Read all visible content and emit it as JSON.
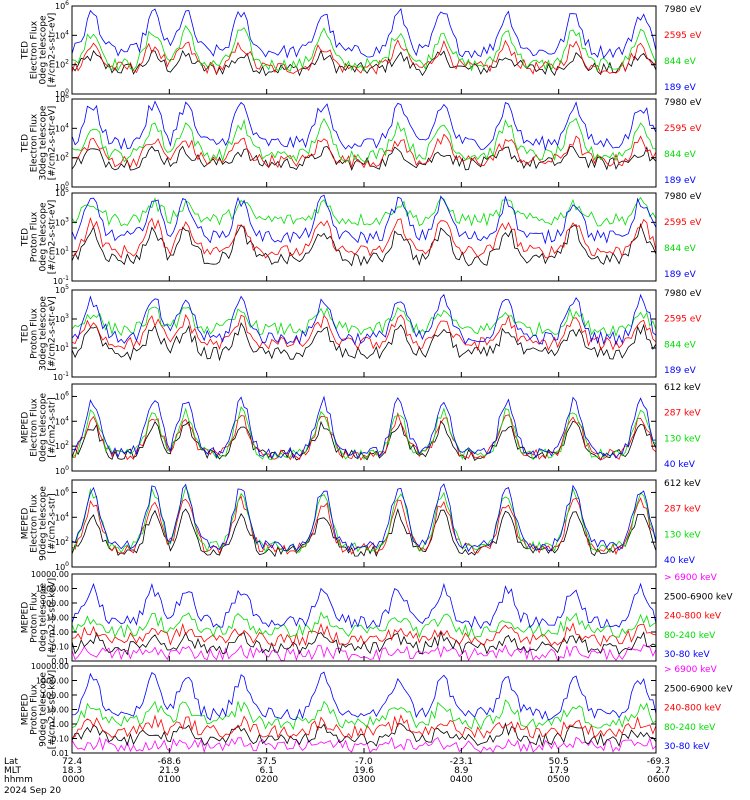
{
  "colors": {
    "black": "#000000",
    "red": "#ff0000",
    "green": "#00dd00",
    "blue": "#0000ff",
    "magenta": "#ff00ff"
  },
  "chart_data": [
    {
      "type": "line",
      "scale": "log",
      "ylim": [
        1,
        1000000
      ],
      "ylabel": [
        "TED",
        "Electron Flux",
        "0deg telescope",
        "[#/cm2-s-str-eV]"
      ],
      "yticks": [
        {
          "label": "10",
          "exp": "0",
          "v": 1
        },
        {
          "label": "10",
          "exp": "2",
          "v": 100
        },
        {
          "label": "10",
          "exp": "4",
          "v": 10000
        },
        {
          "label": "10",
          "exp": "6",
          "v": 1000000
        }
      ],
      "series": [
        {
          "name": "7980 eV",
          "color": "#000000",
          "base": 50,
          "peak": 400
        },
        {
          "name": "2595 eV",
          "color": "#ff0000",
          "base": 60,
          "peak": 2000
        },
        {
          "name": "844 eV",
          "color": "#00dd00",
          "base": 100,
          "peak": 20000
        },
        {
          "name": "189 eV",
          "color": "#0000ff",
          "base": 800,
          "peak": 300000
        }
      ]
    },
    {
      "type": "line",
      "scale": "log",
      "ylim": [
        1,
        1000000
      ],
      "ylabel": [
        "TED",
        "Electron Flux",
        "30deg telescope",
        "[#/cm2-s-str-eV]"
      ],
      "yticks": [
        {
          "label": "10",
          "exp": "0",
          "v": 1
        },
        {
          "label": "10",
          "exp": "2",
          "v": 100
        },
        {
          "label": "10",
          "exp": "4",
          "v": 10000
        },
        {
          "label": "10",
          "exp": "6",
          "v": 1000000
        }
      ],
      "series": [
        {
          "name": "7980 eV",
          "color": "#000000",
          "base": 40,
          "peak": 300
        },
        {
          "name": "2595 eV",
          "color": "#ff0000",
          "base": 60,
          "peak": 1500
        },
        {
          "name": "844 eV",
          "color": "#00dd00",
          "base": 150,
          "peak": 20000
        },
        {
          "name": "189 eV",
          "color": "#0000ff",
          "base": 1000,
          "peak": 400000
        }
      ]
    },
    {
      "type": "line",
      "scale": "log",
      "ylim": [
        0.1,
        100000
      ],
      "ylabel": [
        "TED",
        "Proton Flux",
        "0deg telescope",
        "[#/cm2-s-str-eV]"
      ],
      "yticks": [
        {
          "label": "10",
          "exp": "-1",
          "v": 0.1
        },
        {
          "label": "10",
          "exp": "1",
          "v": 10
        },
        {
          "label": "10",
          "exp": "3",
          "v": 1000
        },
        {
          "label": "10",
          "exp": "5",
          "v": 100000
        }
      ],
      "series": [
        {
          "name": "7980 eV",
          "color": "#000000",
          "base": 3,
          "peak": 300
        },
        {
          "name": "2595 eV",
          "color": "#ff0000",
          "base": 10,
          "peak": 1000
        },
        {
          "name": "844 eV",
          "color": "#00dd00",
          "base": 1500,
          "peak": 20000
        },
        {
          "name": "189 eV",
          "color": "#0000ff",
          "base": 100,
          "peak": 30000
        }
      ]
    },
    {
      "type": "line",
      "scale": "log",
      "ylim": [
        0.1,
        100000
      ],
      "ylabel": [
        "TED",
        "Proton Flux",
        "30deg telescope",
        "[#/cm2-s-str-eV]"
      ],
      "yticks": [
        {
          "label": "10",
          "exp": "-1",
          "v": 0.1
        },
        {
          "label": "10",
          "exp": "1",
          "v": 10
        },
        {
          "label": "10",
          "exp": "3",
          "v": 1000
        },
        {
          "label": "10",
          "exp": "5",
          "v": 100000
        }
      ],
      "series": [
        {
          "name": "7980 eV",
          "color": "#000000",
          "base": 4,
          "peak": 200
        },
        {
          "name": "2595 eV",
          "color": "#ff0000",
          "base": 20,
          "peak": 800
        },
        {
          "name": "844 eV",
          "color": "#00dd00",
          "base": 200,
          "peak": 3000
        },
        {
          "name": "189 eV",
          "color": "#0000ff",
          "base": 50,
          "peak": 20000
        }
      ]
    },
    {
      "type": "line",
      "scale": "log",
      "ylim": [
        1,
        10000000
      ],
      "ylabel": [
        "MEPED",
        "Electron Flux",
        "0deg telescope",
        "[#/cm2-s-str]"
      ],
      "yticks": [
        {
          "label": "10",
          "exp": "0",
          "v": 1
        },
        {
          "label": "10",
          "exp": "2",
          "v": 100
        },
        {
          "label": "10",
          "exp": "4",
          "v": 10000
        },
        {
          "label": "10",
          "exp": "6",
          "v": 1000000
        }
      ],
      "series": [
        {
          "name": "612 keV",
          "color": "#000000",
          "base": 20,
          "peak": 5000
        },
        {
          "name": "287 keV",
          "color": "#ff0000",
          "base": 20,
          "peak": 20000
        },
        {
          "name": "130 keV",
          "color": "#00dd00",
          "base": 20,
          "peak": 50000
        },
        {
          "name": "40 keV",
          "color": "#0000ff",
          "base": 30,
          "peak": 500000
        }
      ]
    },
    {
      "type": "line",
      "scale": "log",
      "ylim": [
        1,
        10000000
      ],
      "ylabel": [
        "MEPED",
        "Electron Flux",
        "90deg telescope",
        "[#/cm2-s-str]"
      ],
      "yticks": [
        {
          "label": "10",
          "exp": "0",
          "v": 1
        },
        {
          "label": "10",
          "exp": "2",
          "v": 100
        },
        {
          "label": "10",
          "exp": "4",
          "v": 10000
        },
        {
          "label": "10",
          "exp": "6",
          "v": 1000000
        }
      ],
      "series": [
        {
          "name": "612 keV",
          "color": "#000000",
          "base": 20,
          "peak": 20000
        },
        {
          "name": "287 keV",
          "color": "#ff0000",
          "base": 30,
          "peak": 200000
        },
        {
          "name": "130 keV",
          "color": "#00dd00",
          "base": 40,
          "peak": 1000000
        },
        {
          "name": "40 keV",
          "color": "#0000ff",
          "base": 50,
          "peak": 2000000
        }
      ]
    },
    {
      "type": "line",
      "scale": "log",
      "ylim": [
        0.01,
        10000
      ],
      "ylabel": [
        "MEPED",
        "Proton Flux",
        "0deg telescope",
        "[#/cm2-s-str-keV]"
      ],
      "yticks": [
        {
          "label": "0.01",
          "v": 0.01
        },
        {
          "label": "0.10",
          "v": 0.1
        },
        {
          "label": "1.00",
          "v": 1
        },
        {
          "label": "10.00",
          "v": 10
        },
        {
          "label": "100.00",
          "v": 100
        },
        {
          "label": "1000.00",
          "v": 1000
        },
        {
          "label": "10000.00",
          "v": 10000
        }
      ],
      "series": [
        {
          "name": "> 6900 keV",
          "color": "#ff00ff",
          "base": 0.03,
          "peak": 0.05
        },
        {
          "name": "2500-6900 keV",
          "color": "#000000",
          "base": 0.08,
          "peak": 0.4
        },
        {
          "name": "240-800 keV",
          "color": "#ff0000",
          "base": 0.3,
          "peak": 1.5
        },
        {
          "name": "80-240 keV",
          "color": "#00dd00",
          "base": 1.2,
          "peak": 10
        },
        {
          "name": "30-80 keV",
          "color": "#0000ff",
          "base": 5,
          "peak": 800
        }
      ]
    },
    {
      "type": "line",
      "scale": "log",
      "ylim": [
        0.01,
        10000
      ],
      "ylabel": [
        "MEPED",
        "Proton Flux",
        "90deg telescope",
        "[#/cm2-s-str-keV]"
      ],
      "yticks": [
        {
          "label": "0.01",
          "v": 0.01
        },
        {
          "label": "0.10",
          "v": 0.1
        },
        {
          "label": "1.00",
          "v": 1
        },
        {
          "label": "10.00",
          "v": 10
        },
        {
          "label": "100.00",
          "v": 100
        },
        {
          "label": "1000.00",
          "v": 1000
        },
        {
          "label": "10000.00",
          "v": 10000
        }
      ],
      "series": [
        {
          "name": "> 6900 keV",
          "color": "#ff00ff",
          "base": 0.03,
          "peak": 0.05
        },
        {
          "name": "2500-6900 keV",
          "color": "#000000",
          "base": 0.08,
          "peak": 0.4
        },
        {
          "name": "240-800 keV",
          "color": "#ff0000",
          "base": 0.3,
          "peak": 1.5
        },
        {
          "name": "80-240 keV",
          "color": "#00dd00",
          "base": 1.2,
          "peak": 20
        },
        {
          "name": "30-80 keV",
          "color": "#0000ff",
          "base": 5,
          "peak": 1500
        }
      ]
    }
  ],
  "bottom_axis": {
    "row_labels": [
      "Lat",
      "MLT",
      "hhmm"
    ],
    "date": "2024 Sep 20",
    "ticks": [
      {
        "lat": "72.4",
        "mlt": "18.3",
        "hhmm": "0000"
      },
      {
        "lat": "-68.6",
        "mlt": "21.9",
        "hhmm": "0100"
      },
      {
        "lat": "37.5",
        "mlt": "6.1",
        "hhmm": "0200"
      },
      {
        "lat": "-7.0",
        "mlt": "19.6",
        "hhmm": "0300"
      },
      {
        "lat": "-23.1",
        "mlt": "8.9",
        "hhmm": "0400"
      },
      {
        "lat": "50.5",
        "mlt": "17.9",
        "hhmm": "0500"
      },
      {
        "lat": "-69.3",
        "mlt": "2.7",
        "hhmm": "0600"
      }
    ]
  }
}
